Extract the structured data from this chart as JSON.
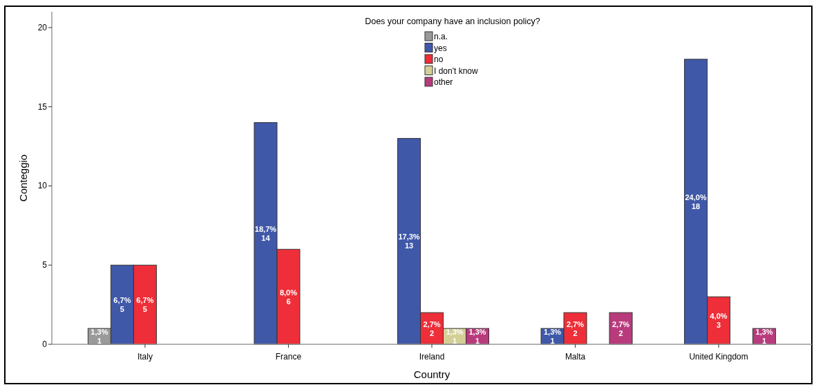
{
  "chart_data": {
    "type": "bar",
    "title": "Does your company have an inclusion policy?",
    "xlabel": "Country",
    "ylabel": "Conteggio",
    "categories": [
      "Italy",
      "France",
      "Ireland",
      "Malta",
      "United Kingdom"
    ],
    "series": [
      {
        "name": "n.a.",
        "color": "#9a9a9a",
        "values": [
          1,
          null,
          null,
          null,
          null
        ],
        "value_labels": [
          "1,3%\n1",
          null,
          null,
          null,
          null
        ]
      },
      {
        "name": "yes",
        "color": "#3f58a8",
        "values": [
          5,
          14,
          13,
          1,
          18
        ],
        "value_labels": [
          "6,7%\n5",
          "18,7%\n14",
          "17,3%\n13",
          "1,3%\n1",
          "24,0%\n18"
        ]
      },
      {
        "name": "no",
        "color": "#ee2e38",
        "values": [
          5,
          6,
          2,
          2,
          3
        ],
        "value_labels": [
          "6,7%\n5",
          "8,0%\n6",
          "2,7%\n2",
          "2,7%\n2",
          "4,0%\n3"
        ]
      },
      {
        "name": "I don't know",
        "color": "#d4cf96",
        "values": [
          null,
          null,
          1,
          null,
          null
        ],
        "value_labels": [
          null,
          null,
          "1,3%\n1",
          null,
          null
        ]
      },
      {
        "name": "other",
        "color": "#b83b7c",
        "values": [
          null,
          null,
          1,
          2,
          1
        ],
        "value_labels": [
          null,
          null,
          "1,3%\n1",
          "2,7%\n2",
          "1,3%\n1"
        ]
      }
    ],
    "ylim": [
      0,
      21
    ],
    "yticks": [
      0,
      5,
      10,
      15,
      20
    ],
    "grid": false,
    "legend": "top"
  }
}
